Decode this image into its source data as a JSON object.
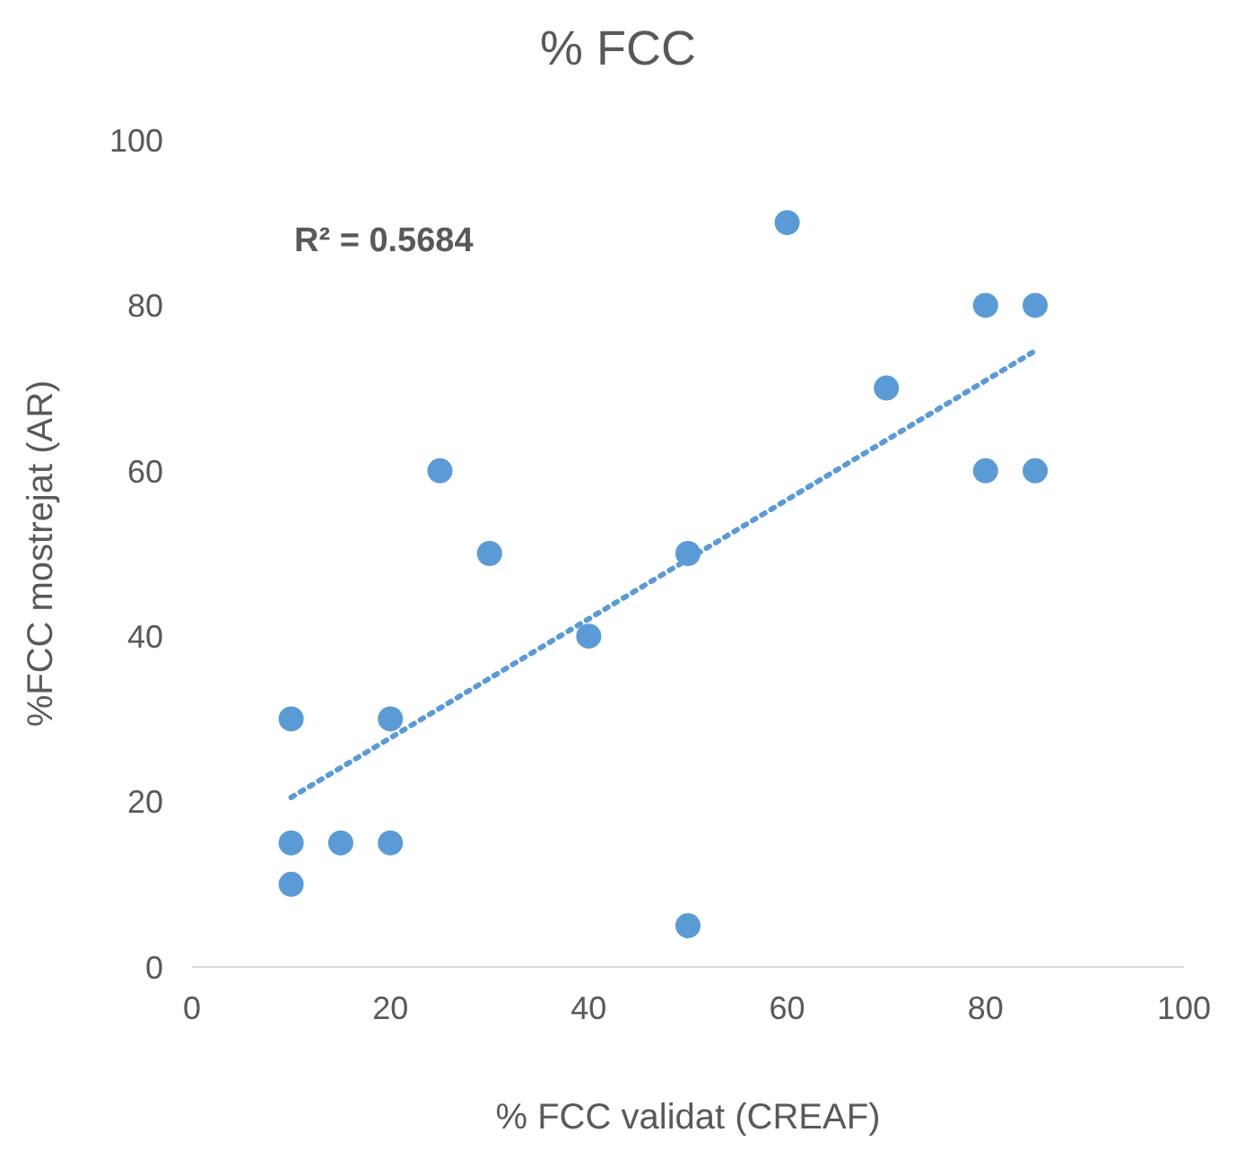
{
  "chart_data": {
    "type": "scatter",
    "title": "% FCC",
    "xlabel": "% FCC validat (CREAF)",
    "ylabel": "%FCC mostrejat (AR)",
    "annotations": [
      "R² = 0.5684"
    ],
    "xlim": [
      0,
      100
    ],
    "xticks": [
      0,
      20,
      40,
      60,
      80,
      100
    ],
    "ylim": [
      0,
      100
    ],
    "yticks": [
      0,
      20,
      40,
      60,
      80,
      100
    ],
    "grid": false,
    "legend": false,
    "marker": "circle",
    "series": [
      {
        "color": "#5b9bd5",
        "x": [
          10,
          10,
          10,
          15,
          20,
          20,
          25,
          30,
          40,
          50,
          50,
          60,
          70,
          80,
          80,
          85,
          85
        ],
        "values": [
          30,
          15,
          10,
          15,
          30,
          15,
          60,
          50,
          40,
          50,
          5,
          90,
          70,
          80,
          60,
          80,
          60
        ]
      },
      {
        "type": "line",
        "color": "#5b9bd5",
        "line_style": "dotted",
        "marker": "none",
        "x": [
          10,
          85
        ],
        "values": [
          20.5,
          74.5
        ]
      }
    ]
  }
}
